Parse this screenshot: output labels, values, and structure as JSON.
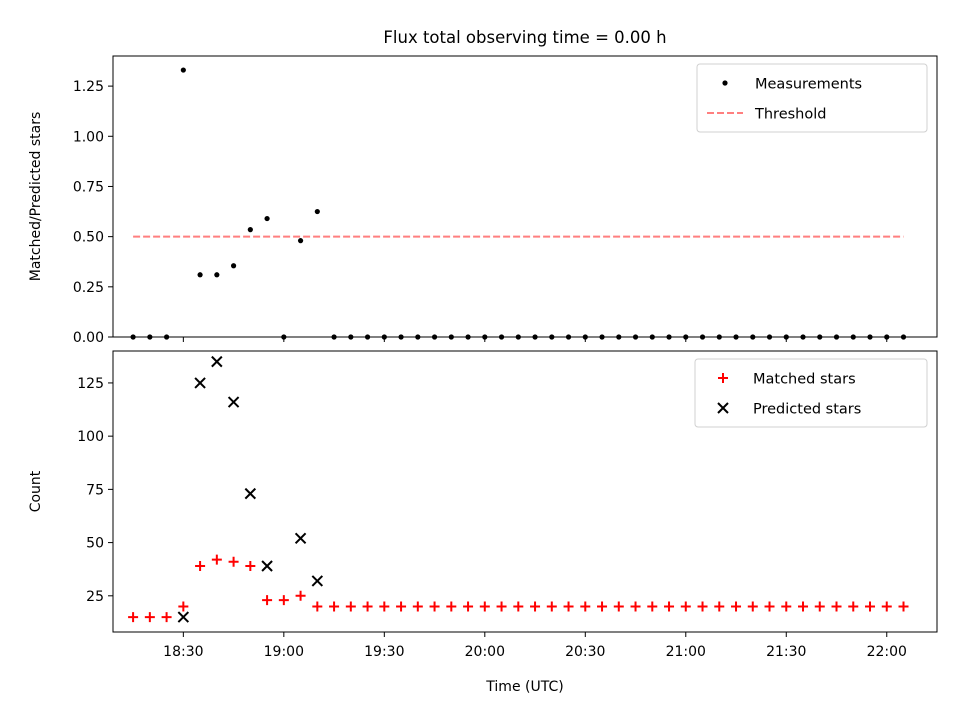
{
  "chart_data": [
    {
      "type": "scatter",
      "title": "Flux total observing time = 0.00 h",
      "xlabel": "",
      "ylabel": "Matched/Predicted stars",
      "ylim": [
        0,
        1.4
      ],
      "yticks": [
        "0.00",
        "0.25",
        "0.50",
        "0.75",
        "1.00",
        "1.25"
      ],
      "xlim": [
        "18:09",
        "22:15"
      ],
      "legend_position": "top-right",
      "threshold": {
        "name": "Threshold",
        "value": 0.5,
        "x_start": "18:15",
        "x_end": "22:05",
        "color": "#ff7f7f",
        "style": "dashed"
      },
      "series": [
        {
          "name": "Measurements",
          "color": "#000000",
          "marker": "dot",
          "points": [
            [
              "18:15",
              0.0
            ],
            [
              "18:20",
              0.0
            ],
            [
              "18:25",
              0.0
            ],
            [
              "18:30",
              1.33
            ],
            [
              "18:35",
              0.31
            ],
            [
              "18:40",
              0.31
            ],
            [
              "18:45",
              0.355
            ],
            [
              "18:50",
              0.535
            ],
            [
              "18:55",
              0.59
            ],
            [
              "19:00",
              0.0
            ],
            [
              "19:05",
              0.48
            ],
            [
              "19:10",
              0.625
            ],
            [
              "19:15",
              0.0
            ],
            [
              "19:20",
              0.0
            ],
            [
              "19:25",
              0.0
            ],
            [
              "19:30",
              0.0
            ],
            [
              "19:35",
              0.0
            ],
            [
              "19:40",
              0.0
            ],
            [
              "19:45",
              0.0
            ],
            [
              "19:50",
              0.0
            ],
            [
              "19:55",
              0.0
            ],
            [
              "20:00",
              0.0
            ],
            [
              "20:05",
              0.0
            ],
            [
              "20:10",
              0.0
            ],
            [
              "20:15",
              0.0
            ],
            [
              "20:20",
              0.0
            ],
            [
              "20:25",
              0.0
            ],
            [
              "20:30",
              0.0
            ],
            [
              "20:35",
              0.0
            ],
            [
              "20:40",
              0.0
            ],
            [
              "20:45",
              0.0
            ],
            [
              "20:50",
              0.0
            ],
            [
              "20:55",
              0.0
            ],
            [
              "21:00",
              0.0
            ],
            [
              "21:05",
              0.0
            ],
            [
              "21:10",
              0.0
            ],
            [
              "21:15",
              0.0
            ],
            [
              "21:20",
              0.0
            ],
            [
              "21:25",
              0.0
            ],
            [
              "21:30",
              0.0
            ],
            [
              "21:35",
              0.0
            ],
            [
              "21:40",
              0.0
            ],
            [
              "21:45",
              0.0
            ],
            [
              "21:50",
              0.0
            ],
            [
              "21:55",
              0.0
            ],
            [
              "22:00",
              0.0
            ],
            [
              "22:05",
              0.0
            ]
          ]
        }
      ]
    },
    {
      "type": "scatter",
      "title": "",
      "xlabel": "Time (UTC)",
      "ylabel": "Count",
      "ylim": [
        8,
        140
      ],
      "yticks": [
        "25",
        "50",
        "75",
        "100",
        "125"
      ],
      "xlim": [
        "18:09",
        "22:15"
      ],
      "xticks": [
        "18:30",
        "19:00",
        "19:30",
        "20:00",
        "20:30",
        "21:00",
        "21:30",
        "22:00"
      ],
      "legend_position": "top-right",
      "series": [
        {
          "name": "Matched stars",
          "color": "#ff0000",
          "marker": "plus",
          "points": [
            [
              "18:15",
              15
            ],
            [
              "18:20",
              15
            ],
            [
              "18:25",
              15
            ],
            [
              "18:30",
              20
            ],
            [
              "18:35",
              39
            ],
            [
              "18:40",
              42
            ],
            [
              "18:45",
              41
            ],
            [
              "18:50",
              39
            ],
            [
              "18:55",
              23
            ],
            [
              "19:00",
              23
            ],
            [
              "19:05",
              25
            ],
            [
              "19:10",
              20
            ],
            [
              "19:15",
              20
            ],
            [
              "19:20",
              20
            ],
            [
              "19:25",
              20
            ],
            [
              "19:30",
              20
            ],
            [
              "19:35",
              20
            ],
            [
              "19:40",
              20
            ],
            [
              "19:45",
              20
            ],
            [
              "19:50",
              20
            ],
            [
              "19:55",
              20
            ],
            [
              "20:00",
              20
            ],
            [
              "20:05",
              20
            ],
            [
              "20:10",
              20
            ],
            [
              "20:15",
              20
            ],
            [
              "20:20",
              20
            ],
            [
              "20:25",
              20
            ],
            [
              "20:30",
              20
            ],
            [
              "20:35",
              20
            ],
            [
              "20:40",
              20
            ],
            [
              "20:45",
              20
            ],
            [
              "20:50",
              20
            ],
            [
              "20:55",
              20
            ],
            [
              "21:00",
              20
            ],
            [
              "21:05",
              20
            ],
            [
              "21:10",
              20
            ],
            [
              "21:15",
              20
            ],
            [
              "21:20",
              20
            ],
            [
              "21:25",
              20
            ],
            [
              "21:30",
              20
            ],
            [
              "21:35",
              20
            ],
            [
              "21:40",
              20
            ],
            [
              "21:45",
              20
            ],
            [
              "21:50",
              20
            ],
            [
              "21:55",
              20
            ],
            [
              "22:00",
              20
            ],
            [
              "22:05",
              20
            ]
          ]
        },
        {
          "name": "Predicted stars",
          "color": "#000000",
          "marker": "x",
          "points": [
            [
              "18:30",
              15
            ],
            [
              "18:35",
              125
            ],
            [
              "18:40",
              135
            ],
            [
              "18:45",
              116
            ],
            [
              "18:50",
              73
            ],
            [
              "18:55",
              39
            ],
            [
              "19:05",
              52
            ],
            [
              "19:10",
              32
            ]
          ]
        }
      ]
    }
  ]
}
